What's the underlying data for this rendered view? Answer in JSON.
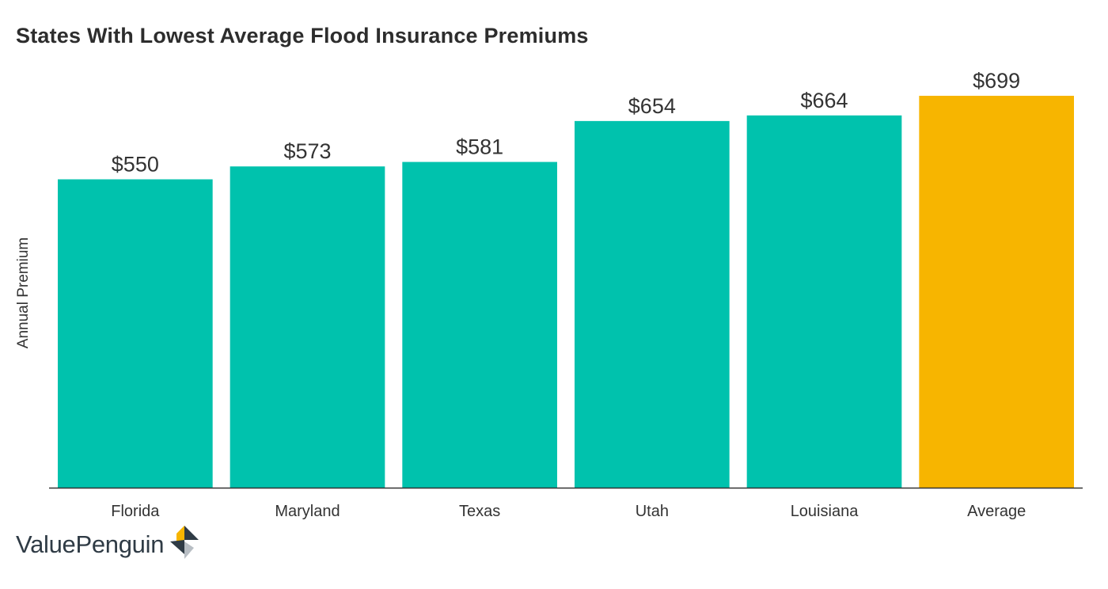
{
  "chart_data": {
    "type": "bar",
    "title": "States With Lowest Average Flood Insurance Premiums",
    "ylabel": "Annual Premium",
    "categories": [
      "Florida",
      "Maryland",
      "Texas",
      "Utah",
      "Louisiana",
      "Average"
    ],
    "values": [
      550,
      573,
      581,
      654,
      664,
      699
    ],
    "value_labels": [
      "$550",
      "$573",
      "$581",
      "$654",
      "$664",
      "$699"
    ],
    "ylim": [
      0,
      699
    ],
    "grid": false,
    "colors": {
      "bar": "#00c2ad",
      "highlight": "#f7b500"
    },
    "highlight_index": 5
  },
  "logo": {
    "text": "ValuePenguin",
    "icon": "valuepenguin-logo-icon"
  }
}
